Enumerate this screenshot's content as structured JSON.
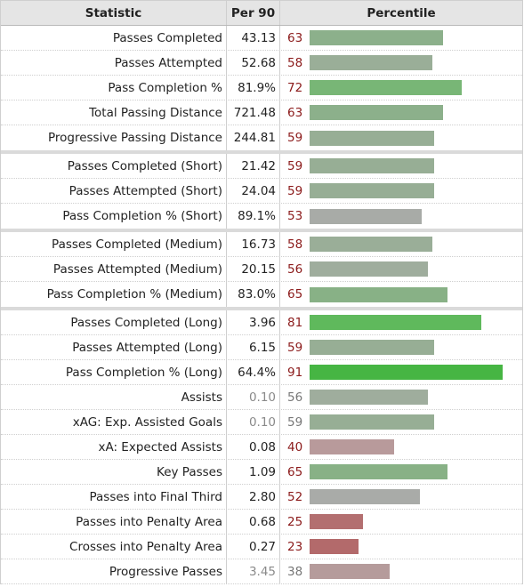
{
  "header": {
    "statistic": "Statistic",
    "per90": "Per 90",
    "percentile": "Percentile"
  },
  "rows": [
    {
      "stat": "Passes Completed",
      "per90": "43.13",
      "pct": 63,
      "color": "#8cb08b",
      "sep": false,
      "dim": false
    },
    {
      "stat": "Passes Attempted",
      "per90": "52.68",
      "pct": 58,
      "color": "#9aae98",
      "sep": false,
      "dim": false
    },
    {
      "stat": "Pass Completion %",
      "per90": "81.9%",
      "pct": 72,
      "color": "#78b676",
      "sep": false,
      "dim": false
    },
    {
      "stat": "Total Passing Distance",
      "per90": "721.48",
      "pct": 63,
      "color": "#8cb08b",
      "sep": false,
      "dim": false
    },
    {
      "stat": "Progressive Passing Distance",
      "per90": "244.81",
      "pct": 59,
      "color": "#97ae95",
      "sep": true,
      "dim": false
    },
    {
      "stat": "Passes Completed (Short)",
      "per90": "21.42",
      "pct": 59,
      "color": "#97ae95",
      "sep": false,
      "dim": false
    },
    {
      "stat": "Passes Attempted (Short)",
      "per90": "24.04",
      "pct": 59,
      "color": "#97ae95",
      "sep": false,
      "dim": false
    },
    {
      "stat": "Pass Completion % (Short)",
      "per90": "89.1%",
      "pct": 53,
      "color": "#a8aba7",
      "sep": true,
      "dim": false
    },
    {
      "stat": "Passes Completed (Medium)",
      "per90": "16.73",
      "pct": 58,
      "color": "#9aae98",
      "sep": false,
      "dim": false
    },
    {
      "stat": "Passes Attempted (Medium)",
      "per90": "20.15",
      "pct": 56,
      "color": "#9fad9d",
      "sep": false,
      "dim": false
    },
    {
      "stat": "Pass Completion % (Medium)",
      "per90": "83.0%",
      "pct": 65,
      "color": "#88b186",
      "sep": true,
      "dim": false
    },
    {
      "stat": "Passes Completed (Long)",
      "per90": "3.96",
      "pct": 81,
      "color": "#5fb95c",
      "sep": false,
      "dim": false
    },
    {
      "stat": "Passes Attempted (Long)",
      "per90": "6.15",
      "pct": 59,
      "color": "#97ae95",
      "sep": false,
      "dim": false
    },
    {
      "stat": "Pass Completion % (Long)",
      "per90": "64.4%",
      "pct": 91,
      "color": "#46b543",
      "sep": false,
      "dim": false
    },
    {
      "stat": "Assists",
      "per90": "0.10",
      "pct": 56,
      "color": "#9fad9d",
      "sep": false,
      "dim": true
    },
    {
      "stat": "xAG: Exp. Assisted Goals",
      "per90": "0.10",
      "pct": 59,
      "color": "#97ae95",
      "sep": false,
      "dim": true
    },
    {
      "stat": "xA: Expected Assists",
      "per90": "0.08",
      "pct": 40,
      "color": "#b89a9b",
      "sep": false,
      "dim": false
    },
    {
      "stat": "Key Passes",
      "per90": "1.09",
      "pct": 65,
      "color": "#88b186",
      "sep": false,
      "dim": false
    },
    {
      "stat": "Passes into Final Third",
      "per90": "2.80",
      "pct": 52,
      "color": "#a9aba8",
      "sep": false,
      "dim": false
    },
    {
      "stat": "Passes into Penalty Area",
      "per90": "0.68",
      "pct": 25,
      "color": "#b36f70",
      "sep": false,
      "dim": false
    },
    {
      "stat": "Crosses into Penalty Area",
      "per90": "0.27",
      "pct": 23,
      "color": "#b36a6b",
      "sep": false,
      "dim": false
    },
    {
      "stat": "Progressive Passes",
      "per90": "3.45",
      "pct": 38,
      "color": "#b59b9b",
      "sep": false,
      "dim": true
    }
  ]
}
